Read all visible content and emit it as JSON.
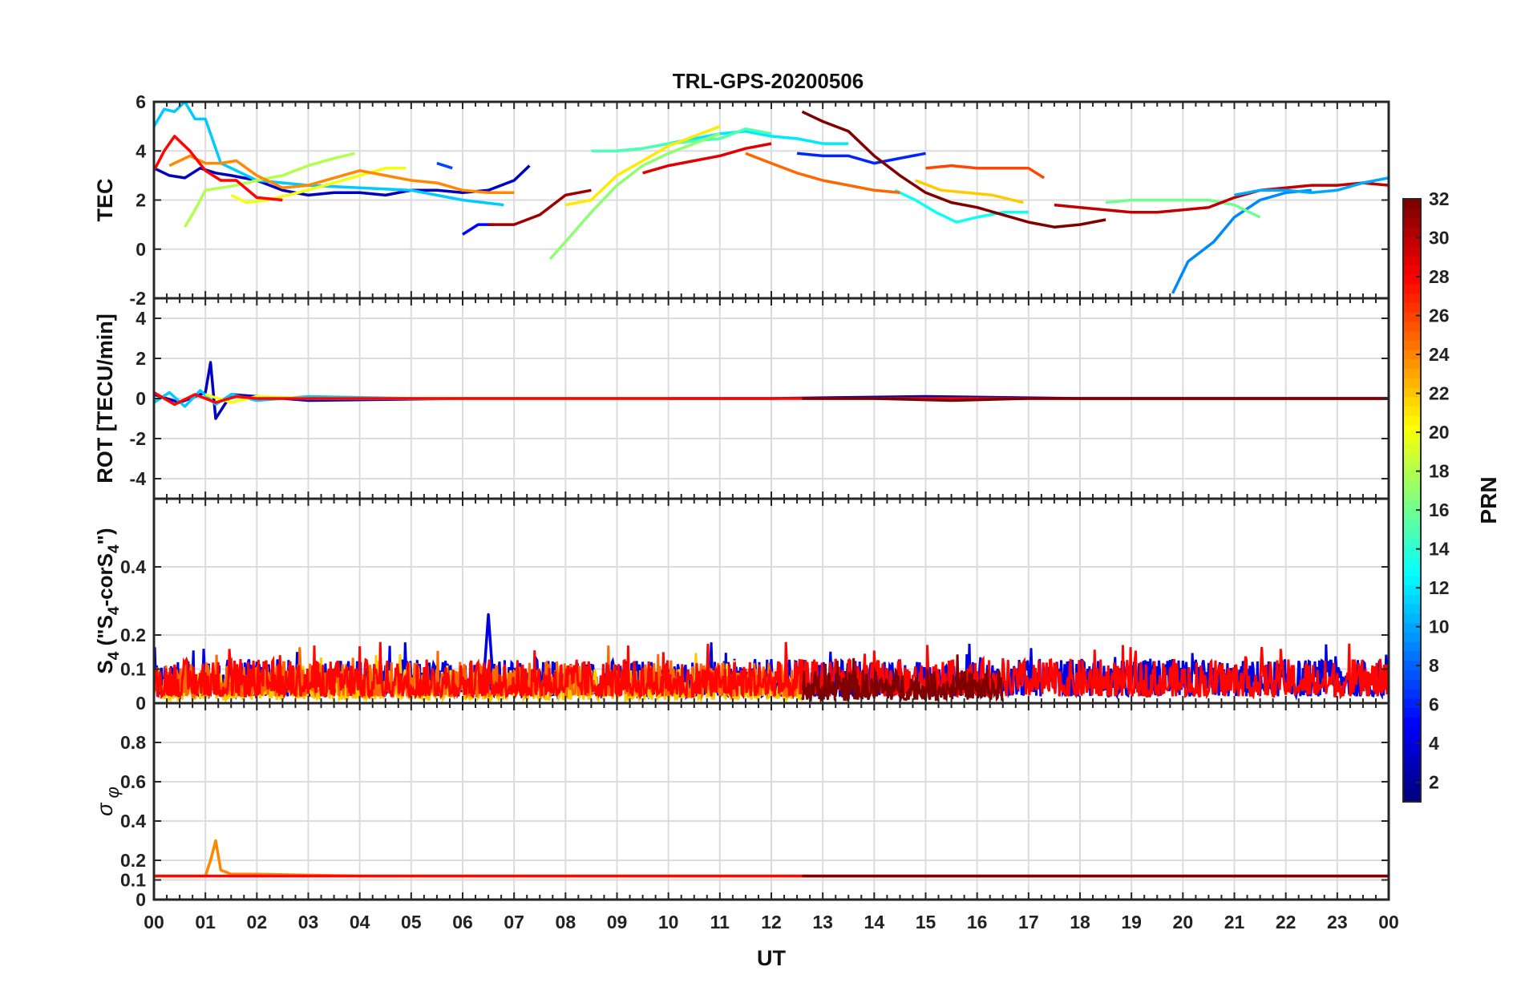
{
  "figure_title": "TRL-GPS-20200506",
  "colors": {
    "background": "#ffffff",
    "axis": "#262626",
    "grid": "#dcdcdc"
  },
  "chart_data": [
    {
      "type": "line",
      "id": "tec",
      "title": "TRL-GPS-20200506",
      "ylabel": "TEC",
      "xlabel": "",
      "xlim": [
        0,
        24
      ],
      "ylim": [
        -2,
        6
      ],
      "yticks": [
        -2,
        0,
        2,
        4,
        6
      ],
      "grid": true,
      "series": [
        {
          "name": "PRN 3",
          "prn": 3,
          "x": [
            0,
            0.3,
            0.6,
            0.9,
            1.2,
            1.5,
            2.0,
            2.5,
            3.0,
            3.5,
            4.0,
            4.5,
            5.0,
            5.5,
            6.0,
            6.5,
            7.0,
            7.3
          ],
          "y": [
            3.3,
            3.0,
            2.9,
            3.3,
            3.1,
            3.0,
            2.8,
            2.4,
            2.2,
            2.3,
            2.3,
            2.2,
            2.4,
            2.4,
            2.3,
            2.4,
            2.8,
            3.4
          ]
        },
        {
          "name": "PRN 5",
          "prn": 5,
          "x": [
            6.0,
            6.3,
            6.6
          ],
          "y": [
            0.6,
            1.0,
            1.0
          ]
        },
        {
          "name": "PRN 6",
          "prn": 6,
          "x": [
            12.5,
            13.0,
            13.5,
            14.0,
            14.5,
            15.0
          ],
          "y": [
            3.9,
            3.8,
            3.8,
            3.5,
            3.7,
            3.9
          ]
        },
        {
          "name": "PRN 7",
          "prn": 7,
          "x": [
            5.5,
            5.8
          ],
          "y": [
            3.5,
            3.3
          ]
        },
        {
          "name": "PRN 9",
          "prn": 9,
          "x": [
            19.8,
            20.1,
            20.6,
            21.0,
            21.5,
            22.0,
            22.5
          ],
          "y": [
            -1.8,
            -0.5,
            0.3,
            1.3,
            2.0,
            2.3,
            2.4
          ]
        },
        {
          "name": "PRN 11",
          "prn": 11,
          "x": [
            0,
            0.2,
            0.4,
            0.6,
            0.8,
            1.0,
            1.3,
            2.0,
            3.0,
            4.0,
            5.0,
            6.0,
            6.8
          ],
          "y": [
            5.0,
            5.7,
            5.6,
            6.0,
            5.3,
            5.3,
            3.5,
            2.8,
            2.6,
            2.5,
            2.4,
            2.0,
            1.8
          ]
        },
        {
          "name": "PRN 12",
          "prn": 12,
          "x": [
            9.0,
            9.5,
            10.0,
            10.5,
            11.0,
            11.5,
            12.0,
            12.5,
            13.0,
            13.5
          ],
          "y": [
            4.0,
            4.1,
            4.3,
            4.5,
            4.7,
            4.8,
            4.6,
            4.5,
            4.3,
            4.3
          ]
        },
        {
          "name": "PRN 13",
          "prn": 13,
          "x": [
            14.4,
            14.8,
            15.2,
            15.6,
            16.0,
            16.5,
            17.0
          ],
          "y": [
            2.4,
            2.0,
            1.5,
            1.1,
            1.3,
            1.5,
            1.5
          ]
        },
        {
          "name": "PRN 15",
          "prn": 15,
          "x": [
            8.5,
            9.0,
            9.5,
            10.0,
            10.5,
            11.0,
            11.5,
            12.0
          ],
          "y": [
            4.0,
            4.0,
            4.1,
            4.3,
            4.4,
            4.5,
            4.9,
            4.7
          ]
        },
        {
          "name": "PRN 16",
          "prn": 16,
          "x": [
            18.5,
            19.0,
            19.5,
            20.0,
            20.5,
            21.0,
            21.5
          ],
          "y": [
            1.9,
            2.0,
            2.0,
            2.0,
            2.0,
            1.8,
            1.3
          ]
        },
        {
          "name": "PRN 17",
          "prn": 17,
          "x": [
            7.7,
            8.0,
            8.5,
            9.0,
            9.5,
            10.0,
            10.5,
            11.0
          ],
          "y": [
            -0.4,
            0.3,
            1.5,
            2.6,
            3.4,
            3.9,
            4.3,
            4.7
          ]
        },
        {
          "name": "PRN 18",
          "prn": 18,
          "x": [
            0.6,
            0.8,
            1.0,
            1.3,
            1.6,
            2.0,
            2.5,
            3.0,
            3.5,
            3.9
          ],
          "y": [
            0.9,
            1.6,
            2.4,
            2.5,
            2.6,
            2.8,
            3.0,
            3.4,
            3.7,
            3.9
          ]
        },
        {
          "name": "PRN 20",
          "prn": 20,
          "x": [
            1.5,
            1.8,
            2.2,
            2.8,
            3.5,
            4.0,
            4.5,
            4.9
          ],
          "y": [
            2.2,
            1.9,
            2.0,
            2.3,
            2.7,
            3.0,
            3.3,
            3.3
          ]
        },
        {
          "name": "PRN 21",
          "prn": 21,
          "x": [
            8.0,
            8.5,
            9.0,
            9.5,
            10.0,
            10.5,
            11.0
          ],
          "y": [
            1.8,
            2.0,
            3.0,
            3.6,
            4.2,
            4.6,
            5.0
          ]
        },
        {
          "name": "PRN 22",
          "prn": 22,
          "x": [
            14.8,
            15.3,
            15.8,
            16.3,
            16.9
          ],
          "y": [
            2.8,
            2.4,
            2.3,
            2.2,
            1.9
          ]
        },
        {
          "name": "PRN 24",
          "prn": 24,
          "x": [
            0.3,
            0.7,
            1.0,
            1.3,
            1.6,
            2.0,
            2.5,
            3.0,
            3.5,
            4.0,
            4.5,
            5.0,
            5.5,
            6.0,
            6.5,
            7.0
          ],
          "y": [
            3.4,
            3.8,
            3.5,
            3.5,
            3.6,
            3.0,
            2.5,
            2.6,
            2.9,
            3.2,
            3.0,
            2.8,
            2.7,
            2.4,
            2.3,
            2.3
          ]
        },
        {
          "name": "PRN 25",
          "prn": 25,
          "x": [
            11.5,
            12.0,
            12.5,
            13.0,
            13.5,
            14.0,
            14.5
          ],
          "y": [
            3.9,
            3.5,
            3.1,
            2.8,
            2.6,
            2.4,
            2.3
          ]
        },
        {
          "name": "PRN 26",
          "prn": 26,
          "x": [
            15.0,
            15.5,
            16.0,
            16.5,
            17.0,
            17.3
          ],
          "y": [
            3.3,
            3.4,
            3.3,
            3.3,
            3.3,
            2.9
          ]
        },
        {
          "name": "PRN 28",
          "prn": 28,
          "x": [
            0,
            0.2,
            0.4,
            0.7,
            1.0,
            1.3,
            1.6,
            2.0,
            2.5
          ],
          "y": [
            3.2,
            4.0,
            4.6,
            4.0,
            3.2,
            2.8,
            2.8,
            2.1,
            2.0
          ]
        },
        {
          "name": "PRN 29",
          "prn": 29,
          "x": [
            9.5,
            10.0,
            10.5,
            11.0,
            11.5,
            12.0
          ],
          "y": [
            3.1,
            3.4,
            3.6,
            3.8,
            4.1,
            4.3
          ]
        },
        {
          "name": "PRN 30",
          "prn": 30,
          "x": [
            17.5,
            18.0,
            18.5,
            19.0,
            19.5,
            20.0,
            20.5,
            21.0,
            21.5,
            22.0,
            22.5,
            23.0,
            23.5,
            24.0
          ],
          "y": [
            1.8,
            1.7,
            1.6,
            1.5,
            1.5,
            1.6,
            1.7,
            2.1,
            2.4,
            2.5,
            2.6,
            2.6,
            2.7,
            2.6
          ]
        },
        {
          "name": "PRN 31",
          "prn": 31,
          "x": [
            6.5,
            7.0,
            7.5,
            8.0,
            8.5
          ],
          "y": [
            1.0,
            1.0,
            1.4,
            2.2,
            2.4
          ]
        },
        {
          "name": "PRN 32",
          "prn": 32,
          "x": [
            12.6,
            13.0,
            13.5,
            14.0,
            14.5,
            15.0,
            15.5,
            16.0,
            16.5,
            17.0,
            17.5,
            18.0,
            18.5
          ],
          "y": [
            5.6,
            5.2,
            4.8,
            3.8,
            3.0,
            2.3,
            1.9,
            1.7,
            1.4,
            1.1,
            0.9,
            1.0,
            1.2
          ]
        },
        {
          "name": "PRN 10",
          "prn": 10,
          "x": [
            21.0,
            21.5,
            22.0,
            22.5,
            23.0,
            23.5,
            24.0
          ],
          "y": [
            2.2,
            2.4,
            2.4,
            2.3,
            2.4,
            2.7,
            2.9
          ]
        }
      ]
    },
    {
      "type": "line",
      "id": "rot",
      "ylabel": "ROT [TECU/min]",
      "xlim": [
        0,
        24
      ],
      "ylim": [
        -5,
        5
      ],
      "yticks": [
        -4,
        -2,
        0,
        2,
        4
      ],
      "grid": true,
      "series": [
        {
          "name": "PRN 3",
          "prn": 3,
          "x": [
            0,
            0.5,
            1.0,
            1.1,
            1.2,
            1.5,
            3.0,
            6.0,
            9.0,
            12.0,
            15.0,
            18.0,
            21.0,
            24.0
          ],
          "y": [
            0.2,
            -0.2,
            0.3,
            1.8,
            -1.0,
            0.2,
            -0.1,
            0.0,
            0.0,
            0.0,
            0.1,
            0.0,
            0.0,
            0.0
          ]
        },
        {
          "name": "PRN 11",
          "prn": 11,
          "x": [
            0,
            0.3,
            0.6,
            0.9,
            1.2,
            1.5,
            2.0,
            3.0,
            5.0,
            8.0,
            12.0
          ],
          "y": [
            -0.2,
            0.3,
            -0.4,
            0.4,
            -0.3,
            0.2,
            -0.1,
            0.1,
            0.0,
            0.0,
            0.0
          ]
        },
        {
          "name": "PRN 20",
          "prn": 20,
          "x": [
            1.0,
            1.5,
            2.0,
            3.0,
            6.0,
            9.0,
            10.0
          ],
          "y": [
            0.2,
            -0.2,
            0.1,
            0.0,
            0.0,
            0.0,
            0.0
          ]
        },
        {
          "name": "PRN 28",
          "prn": 28,
          "x": [
            0,
            0.4,
            0.8,
            1.2,
            1.6,
            2.0,
            4.0,
            8.0,
            12.0,
            16.0,
            20.0,
            24.0
          ],
          "y": [
            0.3,
            -0.3,
            0.2,
            -0.2,
            0.1,
            0.0,
            0.0,
            0.0,
            0.0,
            0.0,
            0.0,
            0.0
          ]
        },
        {
          "name": "PRN 32",
          "prn": 32,
          "x": [
            12.6,
            14.0,
            15.5,
            17.0,
            18.5,
            20.0,
            24.0
          ],
          "y": [
            0.0,
            0.0,
            -0.1,
            0.0,
            0.0,
            0.0,
            0.0
          ]
        }
      ]
    },
    {
      "type": "line",
      "id": "s4",
      "ylabel": "S4 (\"S4-corS4\")",
      "xlim": [
        0,
        24
      ],
      "ylim": [
        0,
        0.6
      ],
      "yticks": [
        0,
        0.1,
        0.2,
        0.4
      ],
      "grid": true,
      "series": [
        {
          "name": "PRN 4",
          "prn": 4,
          "x": [
            6.4,
            6.5,
            6.6
          ],
          "y": [
            0.05,
            0.26,
            0.05
          ]
        },
        {
          "name": "PRN 4 (noise band)",
          "prn": 4,
          "band": [
            0,
            24,
            0.02,
            0.13
          ]
        },
        {
          "name": "PRN 22 (noise band)",
          "prn": 22,
          "band": [
            0,
            12.6,
            0.01,
            0.1
          ]
        },
        {
          "name": "PRN 25 (noise band)",
          "prn": 25,
          "band": [
            0,
            12.6,
            0.02,
            0.12
          ]
        },
        {
          "name": "PRN 28 (noise band)",
          "prn": 28,
          "band": [
            0,
            24,
            0.02,
            0.13
          ]
        },
        {
          "name": "PRN 32 (noise band)",
          "prn": 32,
          "band": [
            12.6,
            16.5,
            0.01,
            0.1
          ]
        }
      ]
    },
    {
      "type": "line",
      "id": "sigma_phi",
      "ylabel": "σφ",
      "xlabel": "UT",
      "xlim": [
        0,
        24
      ],
      "ylim": [
        0,
        1
      ],
      "yticks": [
        0,
        0.1,
        0.2,
        0.4,
        0.6,
        0.8
      ],
      "grid": true,
      "xticks": [
        "00",
        "01",
        "02",
        "03",
        "04",
        "05",
        "06",
        "07",
        "08",
        "09",
        "10",
        "11",
        "12",
        "13",
        "14",
        "15",
        "16",
        "17",
        "18",
        "19",
        "20",
        "21",
        "22",
        "23",
        "00"
      ],
      "series": [
        {
          "name": "PRN 24",
          "prn": 24,
          "x": [
            0,
            1.0,
            1.1,
            1.2,
            1.3,
            1.5,
            2.0,
            4.0,
            8.0,
            12.0,
            16.0,
            20.0,
            24.0
          ],
          "y": [
            0.12,
            0.12,
            0.2,
            0.3,
            0.15,
            0.13,
            0.13,
            0.12,
            0.12,
            0.12,
            0.12,
            0.12,
            0.12
          ]
        },
        {
          "name": "PRN 28",
          "prn": 28,
          "x": [
            0,
            3,
            6,
            9,
            12,
            15,
            18,
            21,
            24
          ],
          "y": [
            0.12,
            0.12,
            0.12,
            0.12,
            0.12,
            0.12,
            0.12,
            0.12,
            0.12
          ]
        },
        {
          "name": "PRN 32",
          "prn": 32,
          "x": [
            12.6,
            14,
            16,
            18,
            20,
            24
          ],
          "y": [
            0.12,
            0.12,
            0.12,
            0.12,
            0.12,
            0.12
          ]
        }
      ]
    }
  ],
  "colorbar": {
    "label": "PRN",
    "min": 1,
    "max": 32,
    "ticks": [
      "2",
      "4",
      "6",
      "8",
      "10",
      "12",
      "14",
      "16",
      "18",
      "20",
      "22",
      "24",
      "26",
      "28",
      "30",
      "32"
    ],
    "colormap": "jet"
  }
}
